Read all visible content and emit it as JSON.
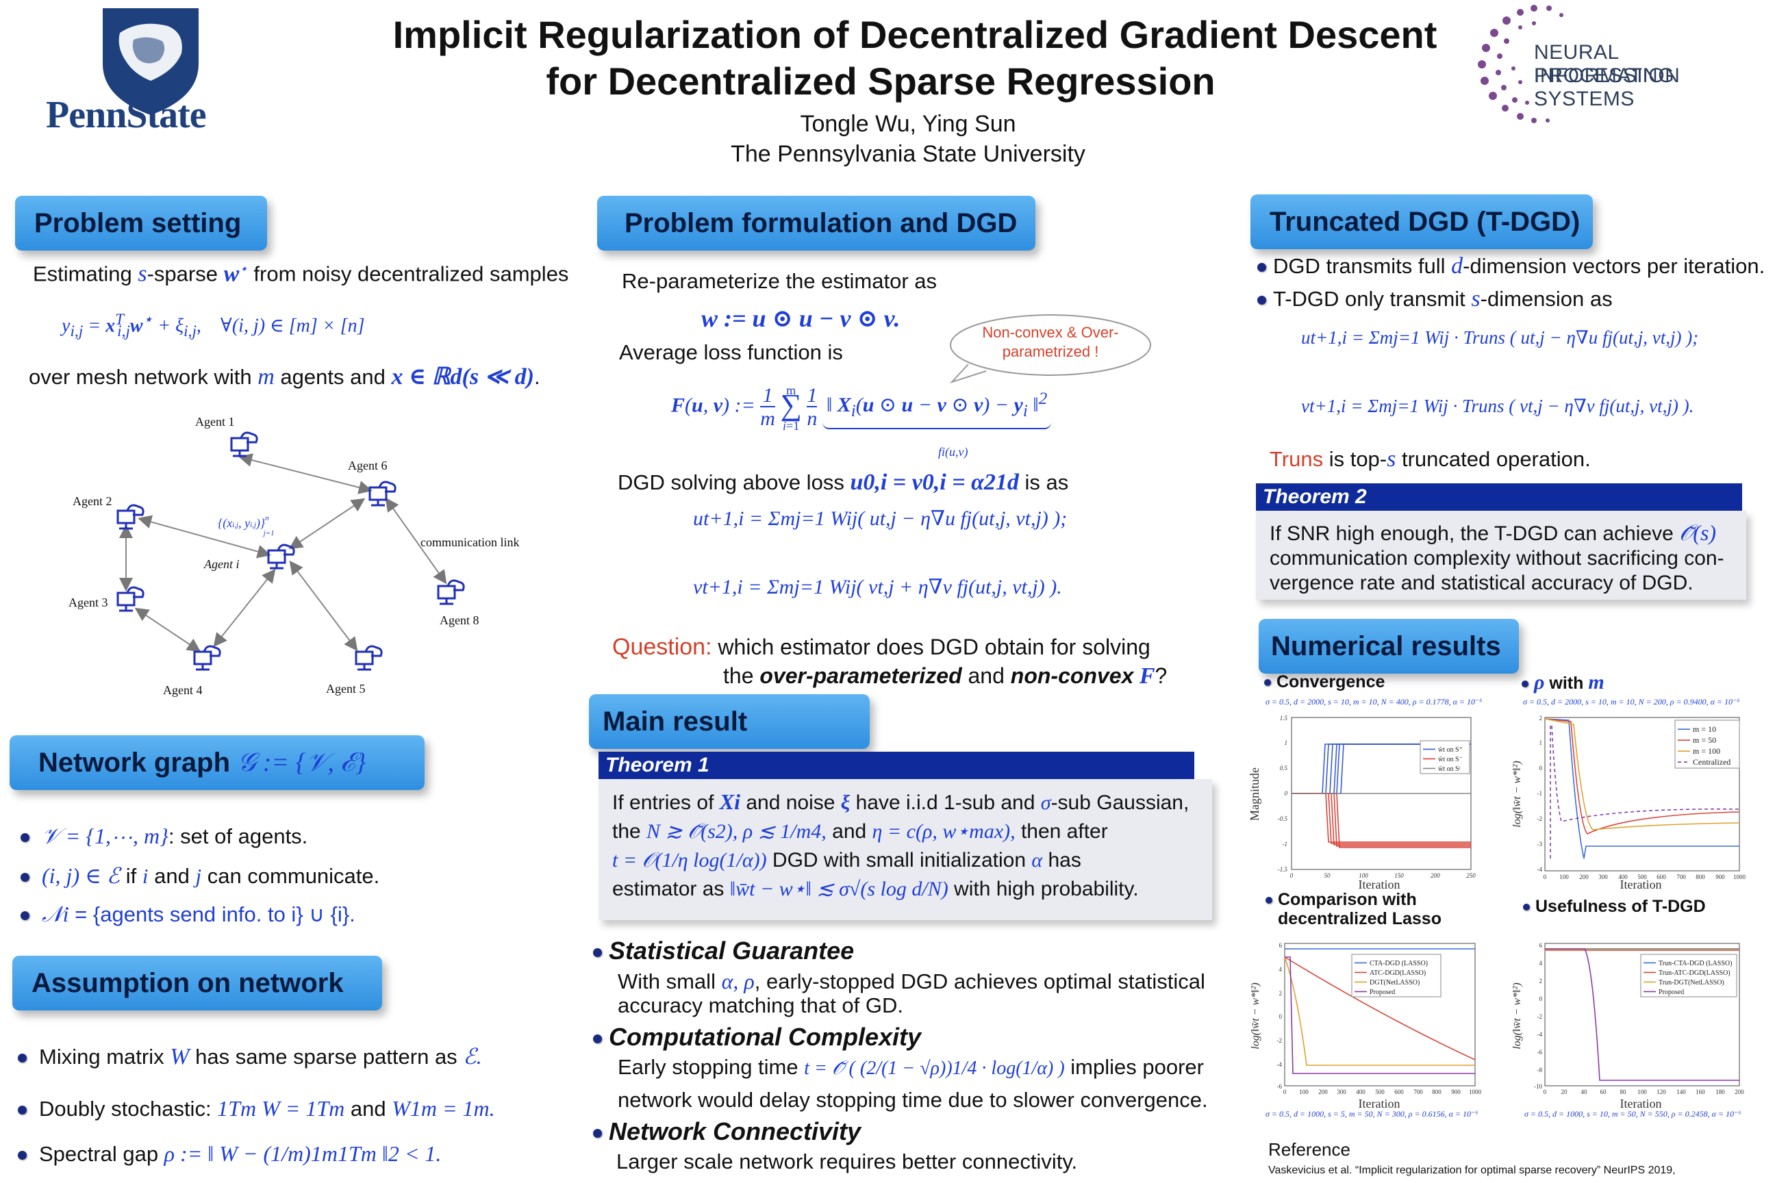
{
  "header": {
    "title_line1": "Implicit Regularization of Decentralized Gradient Descent",
    "title_line2": "for Decentralized Sparse Regression",
    "authors": "Tongle Wu, Ying Sun",
    "affiliation": "The Pennsylvania State University",
    "logo_left": "PennState",
    "logo_right_line1": "NEURAL INFORMATION",
    "logo_right_line2": "PROCESSING SYSTEMS"
  },
  "problem_setting": {
    "title": "Problem setting",
    "line1_a": "Estimating ",
    "line1_m1": "s",
    "line1_b": "-sparse ",
    "line1_m2": "w",
    "line1_c": " from noisy decentralized samples",
    "equation": "yi,j = xTi,j w⋆ + ξi,j,    ∀(i, j) ∈ [m] × [n]",
    "line2_a": "over mesh network with ",
    "line2_m1": "m",
    "line2_b": " agents and ",
    "line2_m2": "x ∈ ℝd(s ≪ d)",
    "line2_c": "."
  },
  "network_diagram": {
    "agents": [
      "Agent 1",
      "Agent 2",
      "Agent 3",
      "Agent 4",
      "Agent 5",
      "Agent 6",
      "Agent i",
      "Agent 8"
    ],
    "link_label": "communication link",
    "data_label": "{(xi,j, yi,j)}n j=1"
  },
  "network_graph": {
    "title": "Network graph 𝒢 := {𝒱, ℰ}",
    "b1_math": "𝒱 = {1,⋯, m}",
    "b1_text": ": set of agents.",
    "b2_math": "(i, j) ∈ ℰ",
    "b2_text_a": " if ",
    "b2_i": "i",
    "b2_text_b": " and ",
    "b2_j": "j",
    "b2_text_c": " can communicate.",
    "b3_math": "𝒩i",
    "b3_text": " = {agents send info. to i} ∪ {i}."
  },
  "assumption": {
    "title": "Assumption on network",
    "b1_a": "Mixing matrix ",
    "b1_m": "W",
    "b1_b": " has same sparse pattern as ",
    "b1_m2": "ℰ.",
    "b2_a": "Doubly stochastic: ",
    "b2_m": "1Tm W = 1Tm",
    "b2_b": " and ",
    "b2_m2": "W1m = 1m.",
    "b3_a": "Spectral gap ",
    "b3_m": "ρ := ‖ W − (1/m)1m1Tm ‖2 < 1."
  },
  "formulation": {
    "title": "Problem formulation and DGD",
    "line1": "Re-parameterize the estimator as",
    "eq1": "w := u ⊙ u − v ⊙ v.",
    "line2": "Average loss function is",
    "callout": "Non-convex & Over-parametrized !",
    "eq_loss": "F(u, v) := (1/m) Σmi=1 (1/n) ‖ Xi(u ⊙ u − v ⊙ v) − yi ‖2",
    "eq_loss_brace": "fi(u,v)",
    "line3_a": "DGD solving above loss ",
    "line3_m": "u0,i = v0,i = α21d",
    "line3_b": " is as",
    "eq_u": "ut+1,i = Σmj=1 Wij( ut,j − η∇u fj(ut,j, vt,j) );",
    "eq_v": "vt+1,i = Σmj=1 Wij( vt,j + η∇v fj(ut,j, vt,j) ).",
    "question_label": "Question:",
    "question_a": " which estimator does DGD obtain for solving",
    "question_b_a": "the ",
    "question_b_em1": "over-parameterized",
    "question_b_b": " and ",
    "question_b_em2": "non-convex",
    "question_b_m": " F",
    "question_b_c": "?"
  },
  "main_result": {
    "title": "Main result",
    "theorem_label": "Theorem 1",
    "l1_a": "If entries of ",
    "l1_m1": "Xi",
    "l1_b": " and noise ",
    "l1_m2": "ξ",
    "l1_c": " have i.i.d 1-sub and ",
    "l1_m3": "σ",
    "l1_d": "-sub Gaussian,",
    "l2_a": "the ",
    "l2_m1": "N ≳ 𝒪̃(s2),  ρ ≲ 1/m4,",
    "l2_b": " and ",
    "l2_m2": "η = c(ρ, w⋆max),",
    "l2_c": " then after",
    "l3_m1": "t = 𝒪(1/η log(1/α))",
    "l3_b": " DGD with small initialization ",
    "l3_m2": "α",
    "l3_c": " has",
    "l4_a": "estimator as ",
    "l4_m": "‖w̄t − w⋆‖ ≲ σ√(s log d/N)",
    "l4_b": " with high probability.",
    "s1_title": "Statistical Guarantee",
    "s1_a": "With small ",
    "s1_m": "α, ρ",
    "s1_b": ", early-stopped DGD achieves optimal statistical",
    "s1_c": "accuracy matching that of GD.",
    "s2_title": "Computational Complexity",
    "s2_a": "Early stopping time ",
    "s2_m": "t = 𝒪̃ ( (2/(1 − √ρ))1/4 · log(1/α) )",
    "s2_b": " implies poorer",
    "s2_c": "network would delay stopping time due to slower convergence.",
    "s3_title": "Network Connectivity",
    "s3_a": "Larger scale network requires better connectivity."
  },
  "tdgd": {
    "title": "Truncated DGD (T-DGD)",
    "b1_a": "DGD transmits full ",
    "b1_m": "d",
    "b1_b": "-dimension vectors per iteration.",
    "b2_a": "T-DGD only transmit ",
    "b2_m": "s",
    "b2_b": "-dimension as",
    "eq_u": "ut+1,i = Σmj=1 Wij · Truns ( ut,j − η∇u fj(ut,j, vt,j) );",
    "eq_v": "vt+1,i = Σmj=1 Wij · Truns ( vt,j − η∇v fj(ut,j, vt,j) ).",
    "trun_a": "Truns",
    "trun_b": " is top-",
    "trun_m": "s",
    "trun_c": " truncated operation.",
    "theorem_label": "Theorem 2",
    "t_l1_a": "If SNR high enough, the T-DGD can achieve ",
    "t_l1_m": "𝒪̃(s)",
    "t_l2": "communication complexity without sacrificing con-",
    "t_l3": "vergence rate and statistical accuracy of DGD."
  },
  "numerical": {
    "title": "Numerical results",
    "p1_title": "Convergence",
    "p1_cap": "σ = 0.5, d = 2000, s = 10, m = 10, N = 400, ρ = 0.1778, α = 10⁻⁶",
    "p1_ylabel": "Magnitude",
    "p1_xlabel": "Iteration",
    "p1_legend": [
      "w̄t on S⁺",
      "w̄t on S⁻",
      "w̄t on Sᶜ"
    ],
    "p2_title_m1": "ρ",
    "p2_title_a": " with ",
    "p2_title_m2": "m",
    "p2_cap": "σ = 0.5, d = 2000, s = 10, m = 10, N = 200, ρ = 0.9400, α = 10⁻⁶",
    "p2_ylabel": "log(‖w̄t − w*‖²)",
    "p2_xlabel": "Iteration",
    "p2_legend": [
      "m = 10",
      "m = 50",
      "m = 100",
      "Centralized"
    ],
    "p3_title_l1": "Comparison with",
    "p3_title_l2": "decentralized Lasso",
    "p3_cap": "σ = 0.5, d = 1000, s = 5, m = 50, N = 300, ρ = 0.6156, α = 10⁻⁶",
    "p3_ylabel": "log(‖w̄t − w*‖²)",
    "p3_xlabel": "Iteration",
    "p3_legend": [
      "CTA-DGD (LASSO)",
      "ATC-DGD(LASSO)",
      "DGT(NetLASSO)",
      "Proposed"
    ],
    "p4_title": "Usefulness of T-DGD",
    "p4_cap": "σ = 0.5, d = 1000, s = 10, m = 50, N = 550, ρ = 0.2458, α = 10⁻⁶",
    "p4_ylabel": "log(‖w̄t − w*‖²)",
    "p4_xlabel": "Iteration",
    "p4_legend": [
      "Trun-CTA-DGD (LASSO)",
      "Trun-ATC-DGD(LASSO)",
      "Trun-DGT(NetLASSO)",
      "Proposed"
    ]
  },
  "reference": {
    "title": "Reference",
    "text": "Vaskevicius et al. “Implicit regularization for optimal sparse recovery”  NeurIPS 2019,"
  },
  "colors": {
    "header_box": "#3f9ee8",
    "theorem_head": "#0f2a9a",
    "math_blue": "#1f3fd6",
    "accent_red": "#d6402a",
    "penn_navy": "#1e407c",
    "neurips_purple": "#7b4a8e"
  }
}
